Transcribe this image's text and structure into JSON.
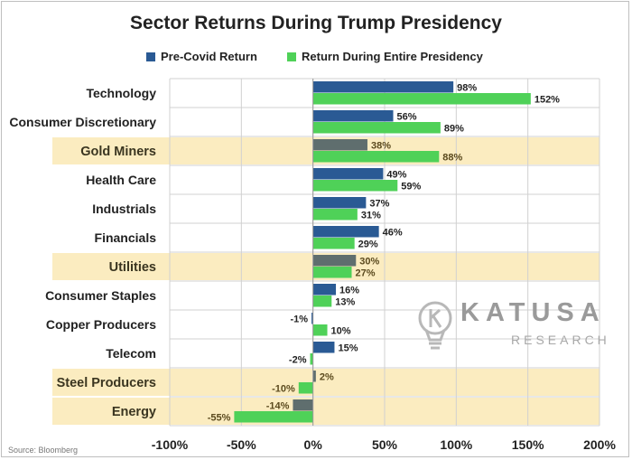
{
  "chart_data": {
    "type": "bar",
    "orientation": "horizontal",
    "title": "Sector Returns During Trump Presidency",
    "categories": [
      "Technology",
      "Consumer Discretionary",
      "Gold Miners",
      "Health Care",
      "Industrials",
      "Financials",
      "Utilities",
      "Consumer Staples",
      "Copper Producers",
      "Telecom",
      "Steel Producers",
      "Energy"
    ],
    "highlighted": [
      "Gold Miners",
      "Utilities",
      "Steel Producers",
      "Energy"
    ],
    "series": [
      {
        "name": "Pre-Covid Return",
        "values": [
          98,
          56,
          38,
          49,
          37,
          46,
          30,
          16,
          -1,
          15,
          2,
          -14
        ],
        "labels": [
          "98%",
          "56%",
          "38%",
          "49%",
          "37%",
          "46%",
          "30%",
          "16%",
          "-1%",
          "15%",
          "2%",
          "-14%"
        ]
      },
      {
        "name": "Return During Entire Presidency",
        "values": [
          152,
          89,
          88,
          59,
          31,
          29,
          27,
          13,
          10,
          -2,
          -10,
          -55
        ],
        "labels": [
          "152%",
          "89%",
          "88%",
          "59%",
          "31%",
          "29%",
          "27%",
          "13%",
          "10%",
          "-2%",
          "-10%",
          "-55%"
        ]
      }
    ],
    "xlim": [
      -100,
      200
    ],
    "x_ticks": [
      -100,
      -50,
      0,
      50,
      100,
      150,
      200
    ],
    "x_tick_labels": [
      "-100%",
      "-50%",
      "0%",
      "50%",
      "100%",
      "150%",
      "200%"
    ],
    "legend_position": "top",
    "grid": true
  },
  "colors": {
    "pre_covid": "#2a5a94",
    "pre_covid_highlight": "#5f6e6e",
    "entire": "#4fd158",
    "highlight_band": "#fbecc0",
    "grid": "#d0d0d0"
  },
  "source": "Source: Bloomberg",
  "watermark": {
    "name": "KATUSA",
    "sub": "RESEARCH"
  }
}
